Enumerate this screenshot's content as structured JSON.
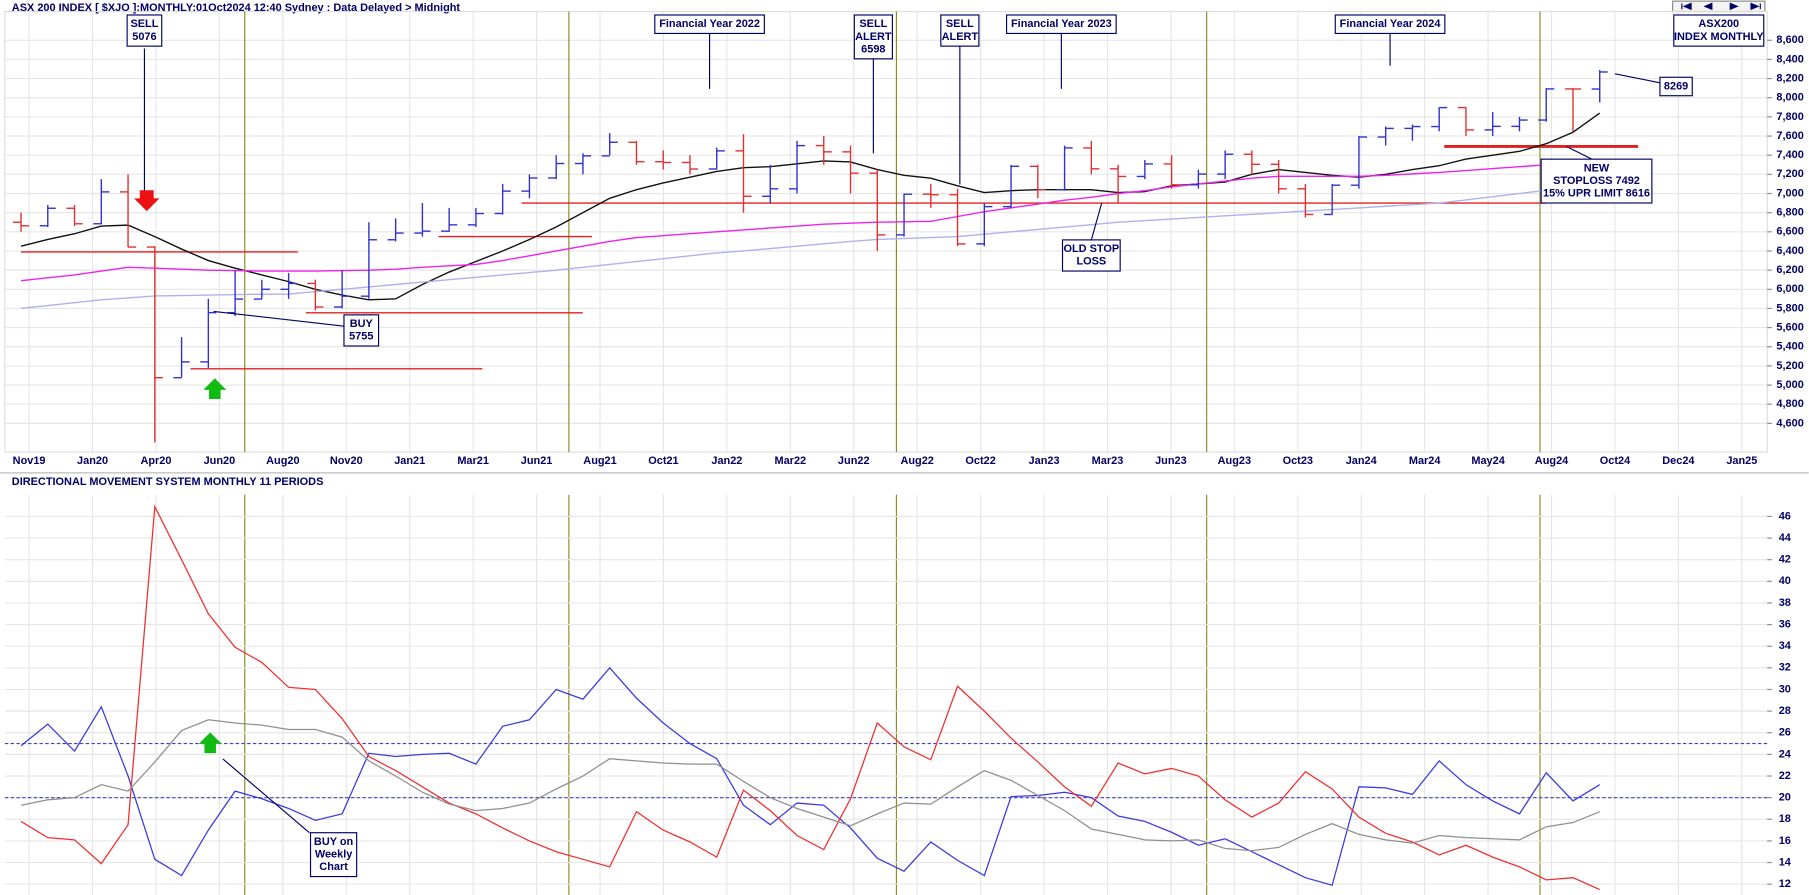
{
  "chart_data": [
    {
      "type": "ohlc",
      "title": "ASX 200 INDEX [ $XJO ]:MONTHLY:01Oct2024 12:40 Sydney : Data Delayed > Midnight",
      "categories": [
        "Nov19",
        "Jan20",
        "Apr20",
        "Jun20",
        "Aug20",
        "Nov20",
        "Jan21",
        "Mar21",
        "Jun21",
        "Aug21",
        "Oct21",
        "Jan22",
        "Mar22",
        "Jun22",
        "Aug22",
        "Oct22",
        "Jan23",
        "Mar23",
        "Jun23",
        "Aug23",
        "Oct23",
        "Jan24",
        "Mar24",
        "May24",
        "Aug24",
        "Oct24",
        "Dec24",
        "Jan25"
      ],
      "open": [
        6700,
        6663,
        6846,
        6684,
        7017,
        6441,
        5077,
        5242,
        5756,
        5898,
        6000,
        6061,
        5815,
        5928,
        6517,
        6587,
        6607,
        6673,
        6791,
        7025,
        7162,
        7313,
        7393,
        7535,
        7332,
        7324,
        7256,
        7445,
        6971,
        7049,
        7500,
        7435,
        7212,
        6568,
        6993,
        6987,
        6474,
        6863,
        7284,
        7039,
        7476,
        7258,
        7178,
        7309,
        7091,
        7203,
        7410,
        7305,
        7049,
        6781,
        7087,
        7590,
        7680,
        7699,
        7897,
        7664,
        7701,
        7767,
        8092,
        8091
      ],
      "high": [
        6800,
        6880,
        6880,
        7150,
        7200,
        6450,
        5500,
        5900,
        6200,
        6100,
        6170,
        6100,
        6200,
        6700,
        6740,
        6900,
        6850,
        6850,
        7100,
        7200,
        7400,
        7420,
        7630,
        7550,
        7450,
        7400,
        7480,
        7620,
        7300,
        7550,
        7600,
        7500,
        7250,
        7000,
        7100,
        7050,
        6900,
        7300,
        7300,
        7500,
        7550,
        7300,
        7350,
        7400,
        7250,
        7450,
        7450,
        7350,
        7100,
        7100,
        7600,
        7700,
        7720,
        7900,
        7900,
        7850,
        7800,
        8100,
        8100,
        8290
      ],
      "low": [
        6600,
        6650,
        6660,
        6680,
        6440,
        4402,
        5080,
        5180,
        5720,
        5900,
        5900,
        5780,
        5800,
        5900,
        6500,
        6550,
        6600,
        6650,
        6780,
        6950,
        7150,
        7200,
        7400,
        7300,
        7250,
        7200,
        7250,
        6800,
        6900,
        7000,
        7300,
        7000,
        6400,
        6550,
        6850,
        6450,
        6450,
        6850,
        6950,
        7030,
        7200,
        6900,
        7150,
        7050,
        7050,
        7150,
        7200,
        7000,
        6750,
        6780,
        7050,
        7500,
        7550,
        7650,
        7600,
        7600,
        7650,
        7750,
        7650,
        7950
      ],
      "close": [
        6663,
        6846,
        6684,
        7017,
        6441,
        5077,
        5242,
        5756,
        5898,
        6000,
        6061,
        5815,
        5928,
        6517,
        6587,
        6607,
        6673,
        6791,
        7025,
        7162,
        7313,
        7393,
        7535,
        7332,
        7324,
        7256,
        7445,
        6971,
        7049,
        7500,
        7435,
        7212,
        6568,
        6993,
        6987,
        6474,
        6863,
        7284,
        7039,
        7476,
        7258,
        7178,
        7309,
        7091,
        7203,
        7410,
        7305,
        7049,
        6781,
        7087,
        7590,
        7680,
        7699,
        7897,
        7664,
        7701,
        7767,
        8092,
        8091,
        8269
      ],
      "moving_averages": [
        {
          "color": "#111111",
          "values": [
            6450,
            6520,
            6580,
            6660,
            6670,
            6550,
            6420,
            6300,
            6220,
            6150,
            6080,
            6000,
            5940,
            5890,
            5900,
            6050,
            6180,
            6290,
            6400,
            6520,
            6650,
            6800,
            6950,
            7040,
            7110,
            7170,
            7230,
            7270,
            7280,
            7310,
            7340,
            7330,
            7250,
            7190,
            7160,
            7080,
            7010,
            7030,
            7040,
            7040,
            7040,
            7010,
            7020,
            7080,
            7100,
            7120,
            7200,
            7250,
            7220,
            7190,
            7170,
            7200,
            7250,
            7290,
            7360,
            7400,
            7440,
            7520,
            7640,
            7840
          ]
        },
        {
          "color": "#ee22ee",
          "values": [
            6090,
            6120,
            6150,
            6190,
            6230,
            6220,
            6210,
            6200,
            6195,
            6190,
            6190,
            6190,
            6195,
            6200,
            6210,
            6230,
            6245,
            6260,
            6300,
            6350,
            6400,
            6450,
            6500,
            6540,
            6560,
            6580,
            6600,
            6620,
            6640,
            6660,
            6680,
            6690,
            6700,
            6705,
            6710,
            6760,
            6810,
            6850,
            6890,
            6930,
            6960,
            7000,
            7030,
            7070,
            7100,
            7130,
            7160,
            7180,
            7180,
            7180,
            7180,
            7190,
            7205,
            7220,
            7240,
            7260,
            7280,
            7300,
            7330,
            7360
          ]
        },
        {
          "color": "#b0b0ee",
          "values": [
            5800,
            5830,
            5860,
            5890,
            5910,
            5930,
            5935,
            5940,
            5945,
            5948,
            5950,
            5975,
            6000,
            6025,
            6050,
            6075,
            6100,
            6125,
            6150,
            6175,
            6200,
            6230,
            6260,
            6290,
            6320,
            6350,
            6380,
            6400,
            6425,
            6450,
            6475,
            6500,
            6520,
            6530,
            6540,
            6550,
            6575,
            6600,
            6625,
            6650,
            6675,
            6700,
            6717,
            6733,
            6750,
            6767,
            6783,
            6800,
            6817,
            6833,
            6850,
            6867,
            6883,
            6900,
            6933,
            6967,
            7000,
            7033,
            7067,
            7100
          ]
        }
      ],
      "up_color": "#3030d0",
      "down_color": "#e03030",
      "stop_lines": [
        6390,
        6550,
        5755,
        5170,
        6900,
        7492
      ],
      "stop_color": "#e02020",
      "ylim": [
        4300,
        8900
      ],
      "yticks": [
        {
          "value": 4600,
          "label": "4,600"
        },
        {
          "value": 4800,
          "label": "4,800"
        },
        {
          "value": 5000,
          "label": "5,000"
        },
        {
          "value": 5200,
          "label": "5,200"
        },
        {
          "value": 5400,
          "label": "5,400"
        },
        {
          "value": 5600,
          "label": "5,600"
        },
        {
          "value": 5800,
          "label": "5,800"
        },
        {
          "value": 6000,
          "label": "6,000"
        },
        {
          "value": 6200,
          "label": "6,200"
        },
        {
          "value": 6400,
          "label": "6,400"
        },
        {
          "value": 6600,
          "label": "6,600"
        },
        {
          "value": 6800,
          "label": "6,800"
        },
        {
          "value": 7000,
          "label": "7,000"
        },
        {
          "value": 7200,
          "label": "7,200"
        },
        {
          "value": 7400,
          "label": "7,400"
        },
        {
          "value": 7600,
          "label": "7,600"
        },
        {
          "value": 7800,
          "label": "7,800"
        },
        {
          "value": 8000,
          "label": "8,000"
        },
        {
          "value": 8200,
          "label": "8,200"
        },
        {
          "value": 8400,
          "label": "8,400"
        },
        {
          "value": 8600,
          "label": "8,600"
        }
      ],
      "grid": true,
      "annotations": [
        {
          "lines": [
            "SELL",
            "5076"
          ]
        },
        {
          "lines": [
            "Financial Year 2022"
          ]
        },
        {
          "lines": [
            "SELL",
            "ALERT",
            "6598"
          ]
        },
        {
          "lines": [
            "SELL",
            "ALERT"
          ]
        },
        {
          "lines": [
            "Financial Year 2023"
          ]
        },
        {
          "lines": [
            "Financial Year 2024"
          ]
        },
        {
          "lines": [
            "ASX200",
            "INDEX MONTHLY"
          ]
        },
        {
          "lines": [
            "8269"
          ]
        },
        {
          "lines": [
            "BUY",
            "5755"
          ]
        },
        {
          "lines": [
            "OLD STOP",
            "LOSS"
          ]
        },
        {
          "lines": [
            "NEW",
            "STOPLOSS 7492",
            "15% UPR LIMIT 8616"
          ]
        }
      ]
    },
    {
      "type": "line",
      "title": "DIRECTIONAL MOVEMENT SYSTEM MONTHLY 11 PERIODS",
      "series": [
        {
          "color": "#3a3ae0",
          "values": [
            24.8,
            26.8,
            24.3,
            28.4,
            22,
            14.3,
            12.8,
            17,
            20.6,
            19.9,
            19,
            17.9,
            18.5,
            24.1,
            23.8,
            24,
            24.1,
            23.1,
            26.6,
            27.2,
            30,
            29.1,
            32,
            29.2,
            26.9,
            25,
            23.6,
            19.3,
            17.5,
            19.5,
            19.3,
            17.2,
            14.4,
            13.2,
            15.9,
            14.2,
            12.8,
            20.1,
            20.2,
            20.5,
            20,
            18.3,
            17.8,
            16.8,
            15.6,
            16.2,
            15,
            13.8,
            12.6,
            11.9,
            21,
            20.9,
            20.3,
            23.4,
            21.2,
            19.7,
            18.5,
            22.3,
            19.7,
            21.2
          ]
        },
        {
          "color": "#ee3030",
          "values": [
            17.8,
            16.3,
            16.1,
            13.9,
            17.5,
            46.9,
            42,
            37,
            33.9,
            32.5,
            30.2,
            30,
            27.3,
            23.8,
            22.5,
            21,
            19.5,
            18.5,
            17.2,
            16,
            15,
            14.3,
            13.6,
            18.7,
            17,
            15.9,
            14.5,
            20.7,
            18.8,
            16.5,
            15.2,
            19.9,
            26.9,
            24.7,
            23.5,
            30.3,
            28,
            25.5,
            23.3,
            21,
            19.2,
            23.2,
            22.2,
            22.7,
            22,
            19.8,
            18.2,
            19.5,
            22.4,
            20.8,
            18.2,
            16.7,
            15.9,
            14.7,
            15.6,
            14.5,
            13.6,
            12.4,
            12.6,
            11.5
          ]
        },
        {
          "color": "#909090",
          "values": [
            19.3,
            19.8,
            20,
            21.2,
            20.6,
            23.3,
            26.2,
            27.2,
            26.9,
            26.7,
            26.3,
            26.3,
            25.6,
            23.4,
            22,
            20.5,
            19.4,
            18.8,
            19,
            19.5,
            20.8,
            22,
            23.6,
            23.4,
            23.2,
            23.1,
            23.1,
            21.5,
            20,
            19,
            18.2,
            17.4,
            18.5,
            19.5,
            19.4,
            21,
            22.5,
            21.6,
            20.2,
            18.8,
            17.1,
            16.6,
            16.1,
            16,
            16.1,
            15.3,
            15.1,
            15.4,
            16.6,
            17.6,
            16.6,
            16.1,
            15.8,
            16.5,
            16.3,
            16.2,
            16.1,
            17.3,
            17.7,
            18.7
          ]
        }
      ],
      "reference_lines": [
        25,
        20
      ],
      "ylim": [
        11,
        48
      ],
      "yticks": [
        12,
        14,
        16,
        18,
        20,
        22,
        24,
        26,
        28,
        30,
        32,
        34,
        36,
        38,
        40,
        42,
        44,
        46
      ],
      "grid": true,
      "annotations": [
        {
          "lines": [
            "BUY on",
            "Weekly",
            "Chart"
          ]
        }
      ]
    }
  ]
}
